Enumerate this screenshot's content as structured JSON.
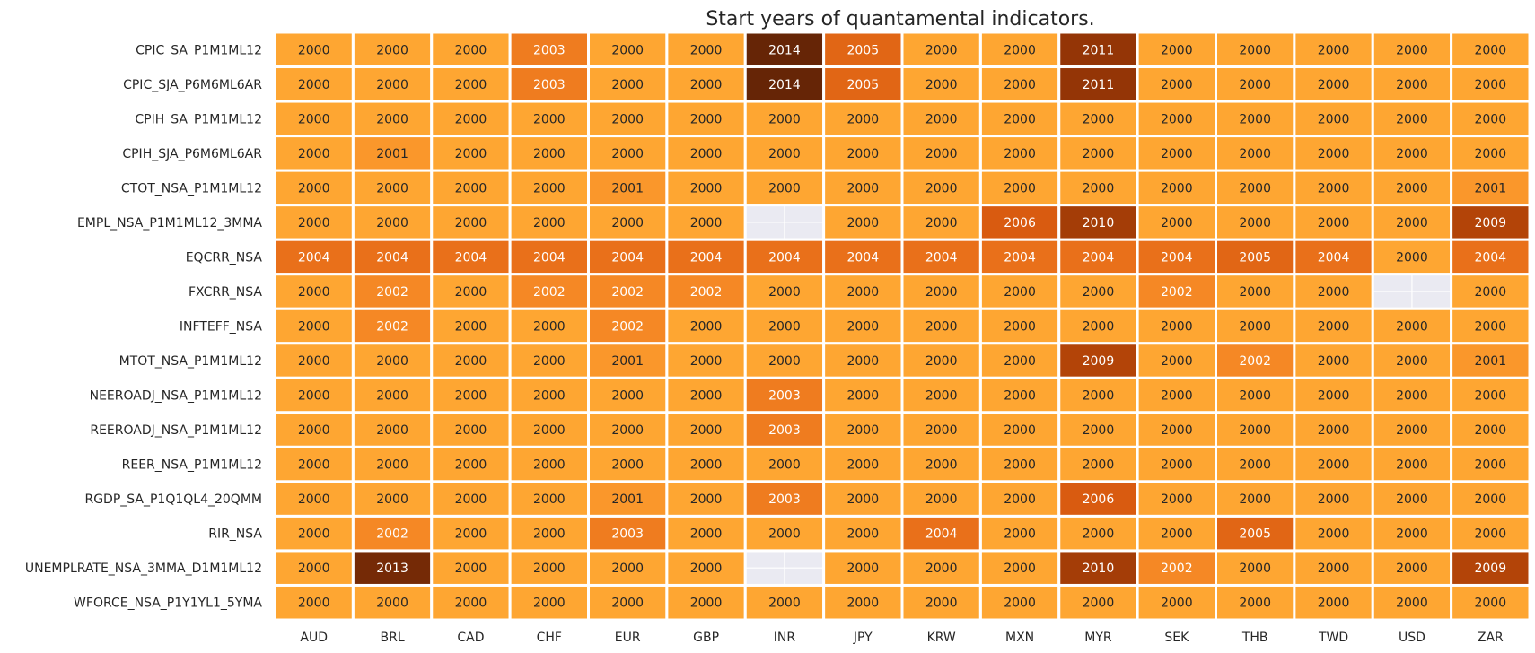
{
  "chart_data": {
    "type": "heatmap",
    "title": "Start years of quantamental indicators.",
    "xlabel": "",
    "ylabel": "",
    "columns": [
      "AUD",
      "BRL",
      "CAD",
      "CHF",
      "EUR",
      "GBP",
      "INR",
      "JPY",
      "KRW",
      "MXN",
      "MYR",
      "SEK",
      "THB",
      "TWD",
      "USD",
      "ZAR"
    ],
    "rows": [
      "CPIC_SA_P1M1ML12",
      "CPIC_SJA_P6M6ML6AR",
      "CPIH_SA_P1M1ML12",
      "CPIH_SJA_P6M6ML6AR",
      "CTOT_NSA_P1M1ML12",
      "EMPL_NSA_P1M1ML12_3MMA",
      "EQCRR_NSA",
      "FXCRR_NSA",
      "INFTEFF_NSA",
      "MTOT_NSA_P1M1ML12",
      "NEEROADJ_NSA_P1M1ML12",
      "REEROADJ_NSA_P1M1ML12",
      "REER_NSA_P1M1ML12",
      "RGDP_SA_P1Q1QL4_20QMM",
      "RIR_NSA",
      "UNEMPLRATE_NSA_3MMA_D1M1ML12",
      "WFORCE_NSA_P1Y1YL1_5YMA"
    ],
    "values": [
      [
        2000,
        2000,
        2000,
        2003,
        2000,
        2000,
        2014,
        2005,
        2000,
        2000,
        2011,
        2000,
        2000,
        2000,
        2000,
        2000
      ],
      [
        2000,
        2000,
        2000,
        2003,
        2000,
        2000,
        2014,
        2005,
        2000,
        2000,
        2011,
        2000,
        2000,
        2000,
        2000,
        2000
      ],
      [
        2000,
        2000,
        2000,
        2000,
        2000,
        2000,
        2000,
        2000,
        2000,
        2000,
        2000,
        2000,
        2000,
        2000,
        2000,
        2000
      ],
      [
        2000,
        2001,
        2000,
        2000,
        2000,
        2000,
        2000,
        2000,
        2000,
        2000,
        2000,
        2000,
        2000,
        2000,
        2000,
        2000
      ],
      [
        2000,
        2000,
        2000,
        2000,
        2001,
        2000,
        2000,
        2000,
        2000,
        2000,
        2000,
        2000,
        2000,
        2000,
        2000,
        2001
      ],
      [
        2000,
        2000,
        2000,
        2000,
        2000,
        2000,
        null,
        2000,
        2000,
        2006,
        2010,
        2000,
        2000,
        2000,
        2000,
        2009
      ],
      [
        2004,
        2004,
        2004,
        2004,
        2004,
        2004,
        2004,
        2004,
        2004,
        2004,
        2004,
        2004,
        2005,
        2004,
        2000,
        2004
      ],
      [
        2000,
        2002,
        2000,
        2002,
        2002,
        2002,
        2000,
        2000,
        2000,
        2000,
        2000,
        2002,
        2000,
        2000,
        null,
        2000
      ],
      [
        2000,
        2002,
        2000,
        2000,
        2002,
        2000,
        2000,
        2000,
        2000,
        2000,
        2000,
        2000,
        2000,
        2000,
        2000,
        2000
      ],
      [
        2000,
        2000,
        2000,
        2000,
        2001,
        2000,
        2000,
        2000,
        2000,
        2000,
        2009,
        2000,
        2002,
        2000,
        2000,
        2001
      ],
      [
        2000,
        2000,
        2000,
        2000,
        2000,
        2000,
        2003,
        2000,
        2000,
        2000,
        2000,
        2000,
        2000,
        2000,
        2000,
        2000
      ],
      [
        2000,
        2000,
        2000,
        2000,
        2000,
        2000,
        2003,
        2000,
        2000,
        2000,
        2000,
        2000,
        2000,
        2000,
        2000,
        2000
      ],
      [
        2000,
        2000,
        2000,
        2000,
        2000,
        2000,
        2000,
        2000,
        2000,
        2000,
        2000,
        2000,
        2000,
        2000,
        2000,
        2000
      ],
      [
        2000,
        2000,
        2000,
        2000,
        2001,
        2000,
        2003,
        2000,
        2000,
        2000,
        2006,
        2000,
        2000,
        2000,
        2000,
        2000
      ],
      [
        2000,
        2002,
        2000,
        2000,
        2003,
        2000,
        2000,
        2000,
        2004,
        2000,
        2000,
        2000,
        2005,
        2000,
        2000,
        2000
      ],
      [
        2000,
        2013,
        2000,
        2000,
        2000,
        2000,
        null,
        2000,
        2000,
        2000,
        2010,
        2002,
        2000,
        2000,
        2000,
        2009
      ],
      [
        2000,
        2000,
        2000,
        2000,
        2000,
        2000,
        2000,
        2000,
        2000,
        2000,
        2000,
        2000,
        2000,
        2000,
        2000,
        2000
      ]
    ],
    "value_range": [
      2000,
      2014
    ],
    "colormap": "YlOrBr",
    "colorbar": false,
    "missing_color": "#eaeaf2",
    "gridline_color": "#ffffff"
  }
}
